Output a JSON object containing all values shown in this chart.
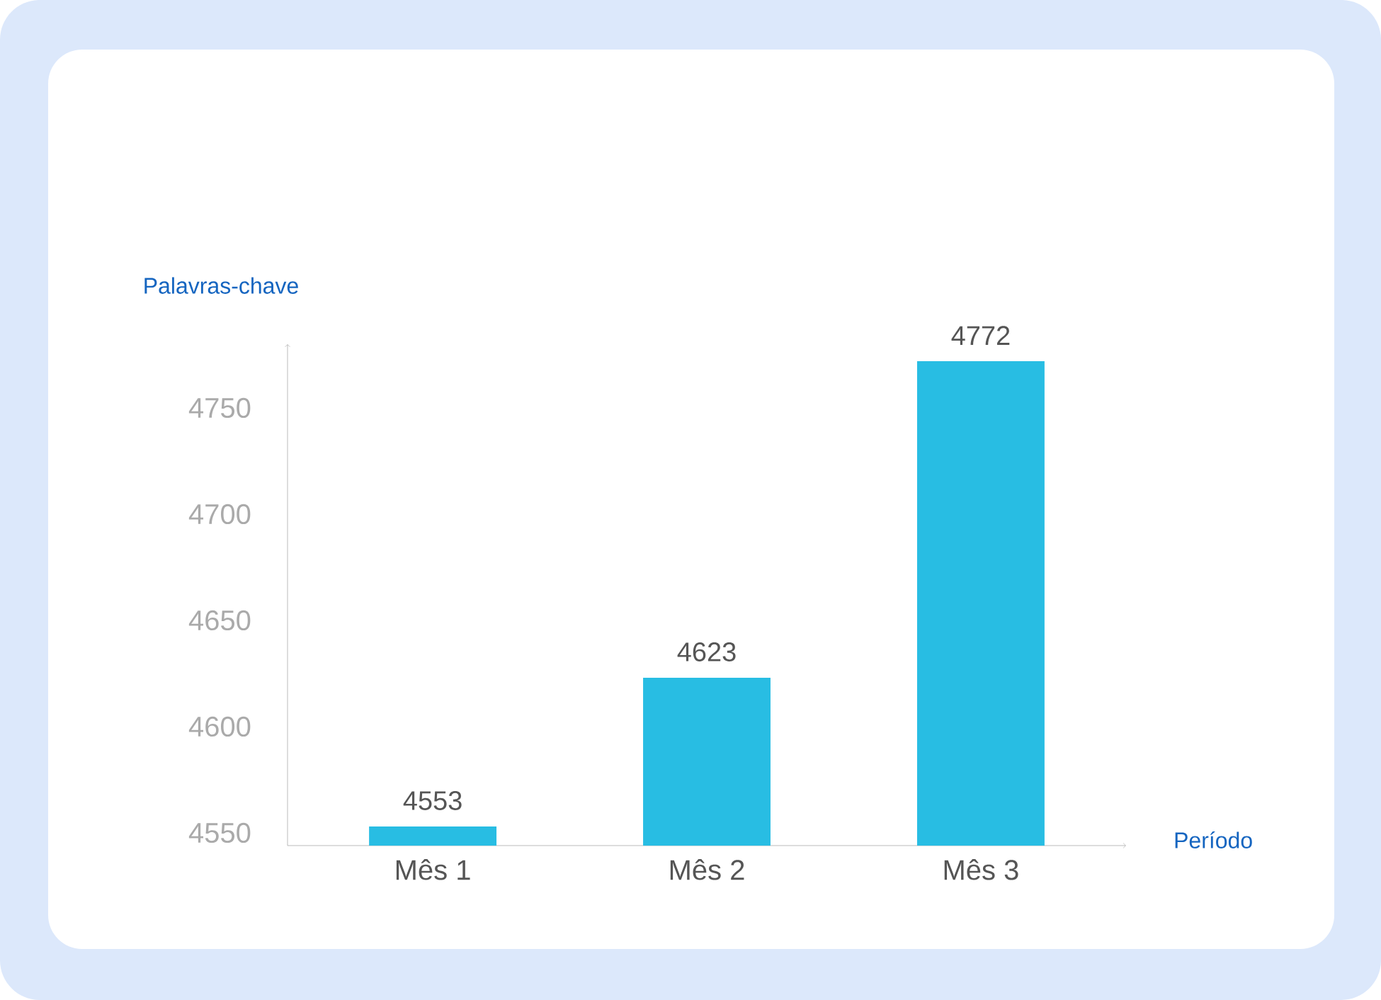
{
  "chart_data": {
    "type": "bar",
    "xlabel": "Período",
    "ylabel": "Palavras-chave",
    "categories": [
      "Mês 1",
      "Mês 2",
      "Mês 3"
    ],
    "values": [
      4553,
      4623,
      4772
    ],
    "color": "#28bde3",
    "ylim": [
      4544,
      4780
    ],
    "yticks": [
      4550,
      4600,
      4650,
      4700,
      4750
    ],
    "data_labels": true
  }
}
